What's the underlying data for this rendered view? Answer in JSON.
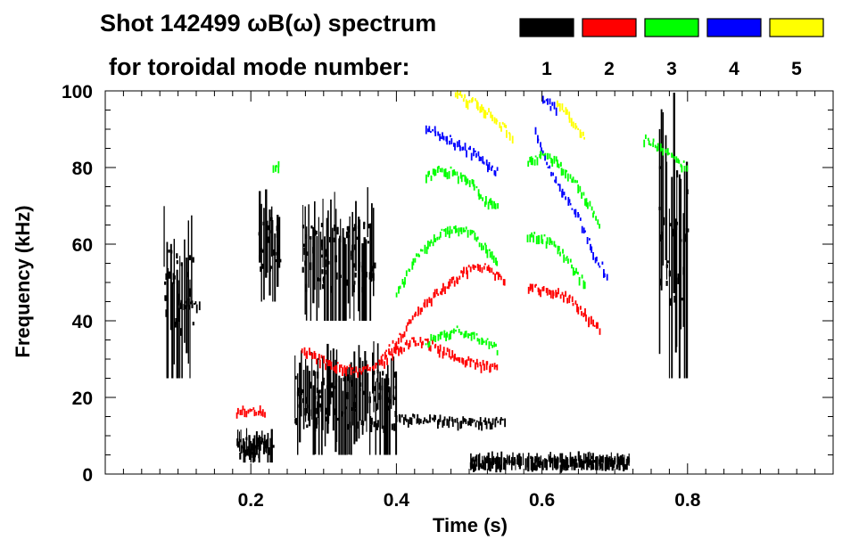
{
  "chart_data": {
    "type": "scatter",
    "title": "Shot 142499 ωB(ω) spectrum",
    "subtitle": "for toroidal mode number:",
    "xlabel": "Time (s)",
    "ylabel": "Frequency (kHz)",
    "xlim": [
      0,
      1
    ],
    "ylim": [
      0,
      100
    ],
    "x_ticks": [
      0.2,
      0.4,
      0.6,
      0.8
    ],
    "x_tick_labels": [
      "0.2",
      "0.4",
      "0.6",
      "0.8"
    ],
    "y_ticks": [
      0,
      20,
      40,
      60,
      80,
      100
    ],
    "y_tick_labels": [
      "0",
      "20",
      "40",
      "60",
      "80",
      "100"
    ],
    "legend": {
      "placement": "top-right",
      "entries": [
        {
          "label": "1",
          "color": "#000000"
        },
        {
          "label": "2",
          "color": "#ff0000"
        },
        {
          "label": "3",
          "color": "#00ff00"
        },
        {
          "label": "4",
          "color": "#0000ff"
        },
        {
          "label": "5",
          "color": "#ffff00"
        }
      ]
    },
    "series": [
      {
        "mode": "1",
        "color": "#000000",
        "regions": [
          {
            "t": [
              0.08,
              0.12
            ],
            "f": [
              25,
              70
            ]
          },
          {
            "t": [
              0.18,
              0.23
            ],
            "f": [
              3,
              12
            ]
          },
          {
            "t": [
              0.21,
              0.24
            ],
            "f": [
              45,
              75
            ]
          },
          {
            "t": [
              0.26,
              0.4
            ],
            "f": [
              5,
              35
            ]
          },
          {
            "t": [
              0.27,
              0.37
            ],
            "f": [
              40,
              75
            ]
          },
          {
            "t": [
              0.5,
              0.72
            ],
            "f": [
              1,
              6
            ]
          },
          {
            "t": [
              0.76,
              0.8
            ],
            "f": [
              25,
              100
            ]
          }
        ],
        "tracks": [
          {
            "t": [
              0.1,
              0.13
            ],
            "f": [
              45,
              45
            ]
          },
          {
            "t": [
              0.4,
              0.55
            ],
            "f": [
              15,
              14
            ]
          }
        ]
      },
      {
        "mode": "2",
        "color": "#ff0000",
        "tracks": [
          {
            "t": [
              0.18,
              0.22
            ],
            "f": [
              17,
              17
            ]
          },
          {
            "t": [
              0.27,
              0.29,
              0.31,
              0.33,
              0.35,
              0.37,
              0.39,
              0.41,
              0.43,
              0.45,
              0.47,
              0.49,
              0.51,
              0.53,
              0.55
            ],
            "f": [
              33,
              31,
              29,
              28,
              27,
              29,
              33,
              38,
              43,
              47,
              50,
              53,
              55,
              54,
              50
            ]
          },
          {
            "t": [
              0.38,
              0.4,
              0.42,
              0.44,
              0.46,
              0.48,
              0.5,
              0.52,
              0.54
            ],
            "f": [
              30,
              33,
              35,
              35,
              33,
              31,
              30,
              29,
              28
            ]
          },
          {
            "t": [
              0.58,
              0.6,
              0.62,
              0.64,
              0.66,
              0.68
            ],
            "f": [
              49,
              49,
              48,
              46,
              42,
              38
            ]
          }
        ]
      },
      {
        "mode": "3",
        "color": "#00ff00",
        "tracks": [
          {
            "t": [
              0.4,
              0.42,
              0.44,
              0.46,
              0.48,
              0.5,
              0.52,
              0.54
            ],
            "f": [
              48,
              55,
              60,
              63,
              65,
              64,
              60,
              55
            ]
          },
          {
            "t": [
              0.44,
              0.46,
              0.48,
              0.5,
              0.52,
              0.54
            ],
            "f": [
              78,
              80,
              79,
              77,
              72,
              70
            ]
          },
          {
            "t": [
              0.44,
              0.46,
              0.48,
              0.5,
              0.52,
              0.54
            ],
            "f": [
              35,
              37,
              38,
              37,
              35,
              33
            ]
          },
          {
            "t": [
              0.58,
              0.6,
              0.62,
              0.64,
              0.66,
              0.68
            ],
            "f": [
              82,
              84,
              82,
              78,
              72,
              65
            ]
          },
          {
            "t": [
              0.58,
              0.6,
              0.62,
              0.64,
              0.66
            ],
            "f": [
              63,
              62,
              60,
              55,
              50
            ]
          },
          {
            "t": [
              0.23,
              0.24
            ],
            "f": [
              81,
              81
            ]
          },
          {
            "t": [
              0.74,
              0.77,
              0.8
            ],
            "f": [
              88,
              85,
              80
            ]
          }
        ]
      },
      {
        "mode": "4",
        "color": "#0000ff",
        "tracks": [
          {
            "t": [
              0.44,
              0.46,
              0.48,
              0.5,
              0.52,
              0.54
            ],
            "f": [
              91,
              89,
              87,
              85,
              82,
              79
            ]
          },
          {
            "t": [
              0.59,
              0.61,
              0.63,
              0.65,
              0.67,
              0.69
            ],
            "f": [
              90,
              80,
              73,
              67,
              58,
              52
            ]
          },
          {
            "t": [
              0.6,
              0.62
            ],
            "f": [
              98,
              96
            ]
          }
        ]
      },
      {
        "mode": "5",
        "color": "#ffff00",
        "tracks": [
          {
            "t": [
              0.48,
              0.5,
              0.52,
              0.54,
              0.56
            ],
            "f": [
              100,
              98,
              96,
              92,
              88
            ]
          },
          {
            "t": [
              0.62,
              0.64,
              0.66
            ],
            "f": [
              98,
              93,
              88
            ]
          }
        ]
      }
    ]
  }
}
